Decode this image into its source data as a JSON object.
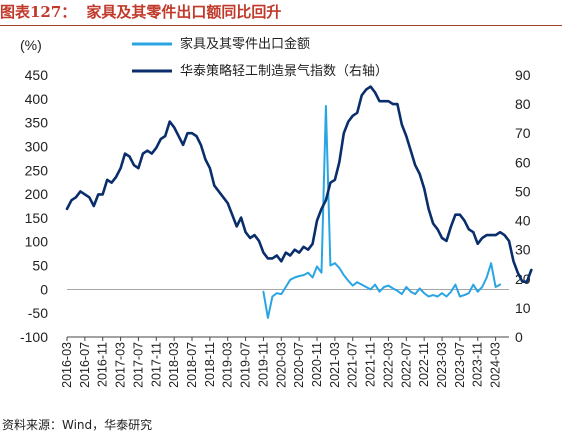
{
  "header": {
    "figure_label": "图表127：",
    "figure_title": "家具及其零件出口额同比回升"
  },
  "footer": {
    "source": "资料来源：Wind，华泰研究"
  },
  "colors": {
    "export_series": "#2aa5e4",
    "sentiment_series": "#0a2e6b",
    "title": "#c0392b"
  },
  "chart_data": {
    "type": "line",
    "unit_label": "(%)",
    "legend_position": "top-center",
    "grid": false,
    "y_left": {
      "min": -100,
      "max": 450,
      "ticks": [
        450,
        400,
        350,
        300,
        250,
        200,
        150,
        100,
        50,
        0,
        -50,
        -100
      ]
    },
    "y_right": {
      "min": 0,
      "max": 90,
      "ticks": [
        90,
        80,
        70,
        60,
        50,
        40,
        30,
        20,
        10,
        0
      ]
    },
    "x_ticks": [
      "2016-03",
      "2016-07",
      "2016-11",
      "2017-03",
      "2017-07",
      "2017-11",
      "2018-03",
      "2018-07",
      "2018-11",
      "2019-03",
      "2019-07",
      "2019-11",
      "2020-03",
      "2020-07",
      "2020-11",
      "2021-03",
      "2021-07",
      "2021-11",
      "2022-03",
      "2022-07",
      "2022-11",
      "2023-03",
      "2023-07",
      "2023-11",
      "2024-03"
    ],
    "x_start": "2016-03",
    "x_end": "2024-06",
    "series": [
      {
        "name": "家具及其零件出口金额",
        "axis": "left",
        "start": "2019-11",
        "values": [
          -5,
          -60,
          -15,
          -8,
          -10,
          5,
          20,
          25,
          28,
          30,
          35,
          25,
          48,
          35,
          385,
          50,
          55,
          45,
          30,
          18,
          8,
          15,
          10,
          5,
          0,
          10,
          -5,
          5,
          8,
          2,
          -3,
          -10,
          5,
          -5,
          -10,
          2,
          -8,
          -15,
          -12,
          -15,
          -8,
          -15,
          -5,
          10,
          -15,
          -12,
          -8,
          10,
          -5,
          5,
          25,
          55,
          5,
          10
        ]
      },
      {
        "name": "华泰策略轻工制造景气指数（右轴）",
        "axis": "right",
        "start": "2016-03",
        "values": [
          44,
          47,
          48,
          50,
          49,
          48,
          45,
          49,
          49,
          54,
          53,
          55,
          58,
          63,
          62,
          59,
          58,
          63,
          64,
          63,
          65,
          68,
          69,
          74,
          72,
          69,
          66,
          70,
          70,
          69,
          66,
          61,
          58,
          52,
          50,
          48,
          46,
          42,
          38,
          41,
          36,
          34,
          35,
          33,
          29,
          27,
          27,
          28,
          26,
          29,
          28,
          30,
          29,
          31,
          30,
          32,
          40,
          44,
          47,
          53,
          54,
          60,
          70,
          74,
          76,
          77,
          83,
          85,
          86,
          84,
          81,
          81,
          81,
          80,
          80,
          73,
          69,
          64,
          59,
          56,
          51,
          44,
          39,
          37,
          34,
          33,
          38,
          42,
          42,
          40,
          37,
          36,
          32,
          34,
          35,
          35,
          35,
          36,
          35,
          33,
          26,
          22,
          19,
          19,
          23
        ]
      }
    ]
  }
}
